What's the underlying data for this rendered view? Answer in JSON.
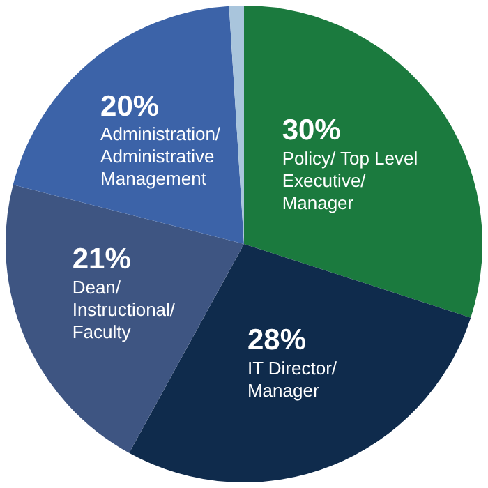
{
  "chart_data": {
    "type": "pie",
    "categories": [
      "Policy/ Top Level Executive/ Manager",
      "IT Director/ Manager",
      "Dean/ Instructional/ Faculty",
      "Administration/ Administrative Management",
      null
    ],
    "values": [
      30,
      28,
      21,
      20,
      1
    ],
    "value_labels": [
      "30%",
      "28%",
      "21%",
      "20%",
      null
    ],
    "colors": [
      "#1b7a3e",
      "#0f2b4c",
      "#3e5582",
      "#3c63a8",
      "#a9c5dc"
    ],
    "legend": false
  }
}
